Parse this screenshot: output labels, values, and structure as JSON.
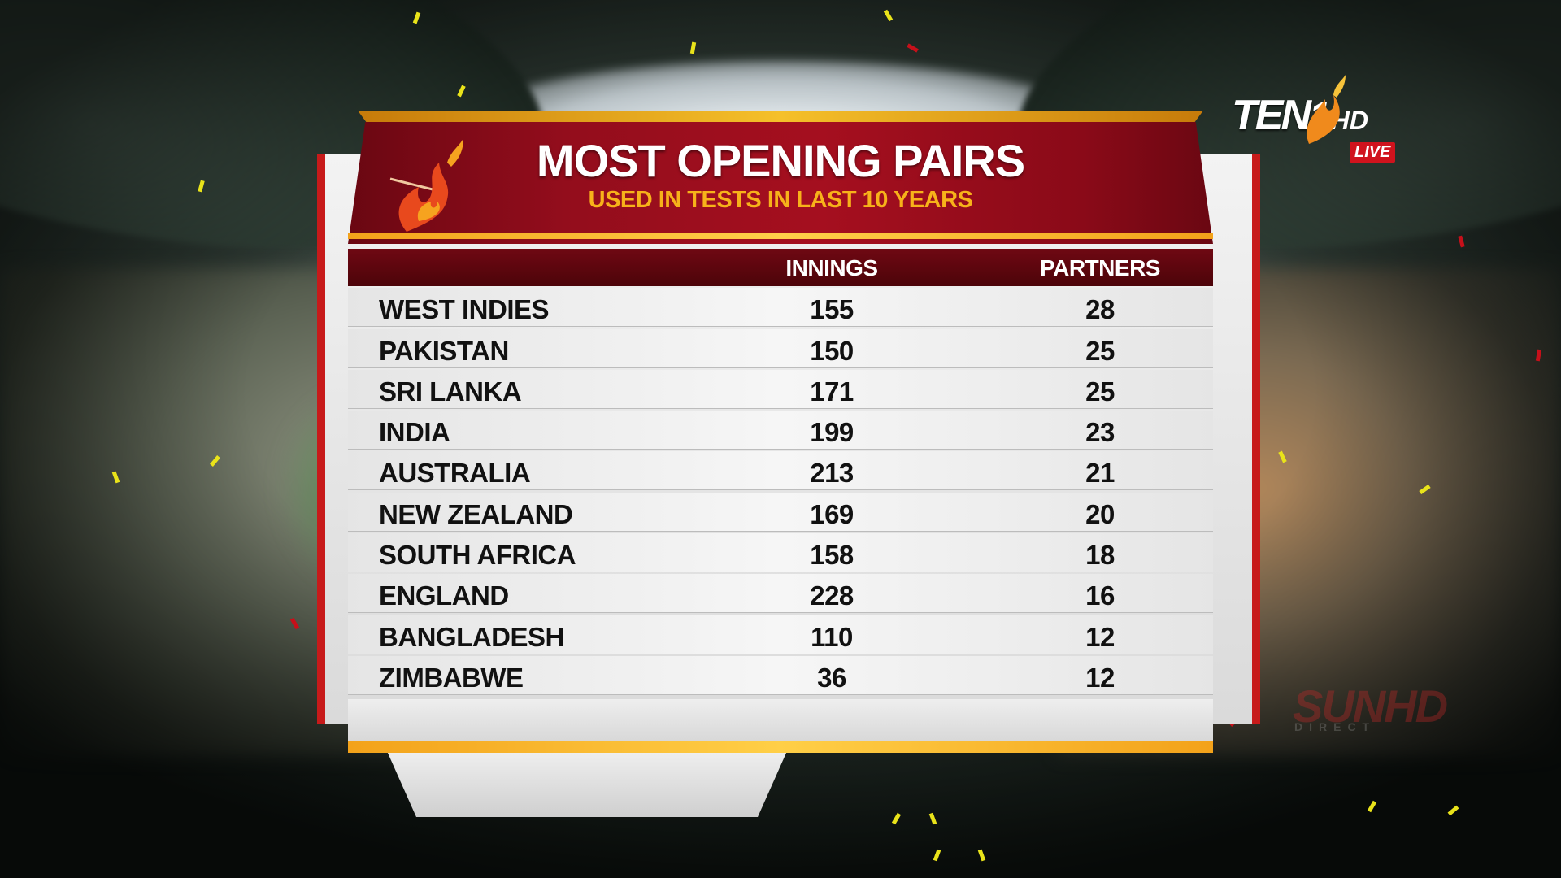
{
  "graphic": {
    "title": "MOST OPENING PAIRS",
    "subtitle": "USED IN TESTS IN LAST 10 YEARS",
    "columns": [
      "INNINGS",
      "PARTNERS"
    ],
    "rows": [
      {
        "team": "WEST INDIES",
        "innings": "155",
        "partners": "28"
      },
      {
        "team": "PAKISTAN",
        "innings": "150",
        "partners": "25"
      },
      {
        "team": "SRI LANKA",
        "innings": "171",
        "partners": "25"
      },
      {
        "team": "INDIA",
        "innings": "199",
        "partners": "23"
      },
      {
        "team": "AUSTRALIA",
        "innings": "213",
        "partners": "21"
      },
      {
        "team": "NEW ZEALAND",
        "innings": "169",
        "partners": "20"
      },
      {
        "team": "SOUTH AFRICA",
        "innings": "158",
        "partners": "18"
      },
      {
        "team": "ENGLAND",
        "innings": "228",
        "partners": "16"
      },
      {
        "team": "BANGLADESH",
        "innings": "110",
        "partners": "12"
      },
      {
        "team": "ZIMBABWE",
        "innings": "36",
        "partners": "12"
      }
    ]
  },
  "channel": {
    "name": "TEN",
    "number": "1",
    "hd": "HD",
    "live": "LIVE"
  },
  "watermark": {
    "brand": "SUN",
    "hd": "HD",
    "sub": "DIRECT"
  },
  "colors": {
    "header_red": "#a50f1f",
    "accent_gold": "#f7b21a",
    "frame_red": "#c71a1a"
  },
  "icons": [
    "flame-logo-icon",
    "channel-flame-icon"
  ]
}
